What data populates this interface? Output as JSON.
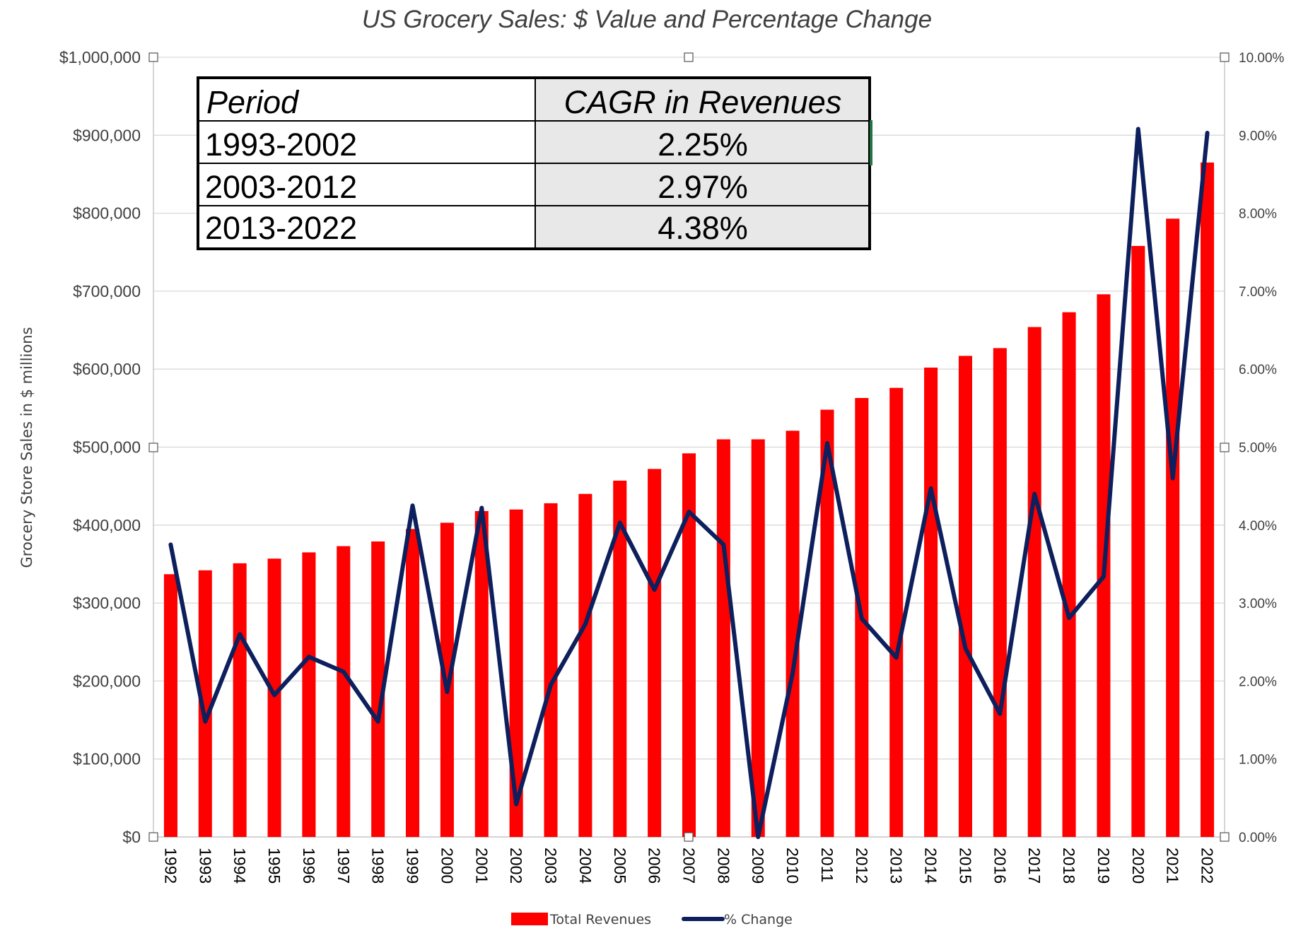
{
  "chart_data": {
    "type": "bar",
    "title": "US Grocery Sales: $ Value and Percentage Change",
    "ylabel": "Grocery Store Sales in $ millions",
    "xlabel": "",
    "ylim": [
      0,
      1000000
    ],
    "y2lim": [
      0,
      10
    ],
    "left_ticks": [
      "$0",
      "$100,000",
      "$200,000",
      "$300,000",
      "$400,000",
      "$500,000",
      "$600,000",
      "$700,000",
      "$800,000",
      "$900,000",
      "$1,000,000"
    ],
    "right_ticks": [
      "0.00%",
      "1.00%",
      "2.00%",
      "3.00%",
      "4.00%",
      "5.00%",
      "6.00%",
      "7.00%",
      "8.00%",
      "9.00%",
      "10.00%"
    ],
    "categories": [
      "1992",
      "1993",
      "1994",
      "1995",
      "1996",
      "1997",
      "1998",
      "1999",
      "2000",
      "2001",
      "2002",
      "2003",
      "2004",
      "2005",
      "2006",
      "2007",
      "2008",
      "2009",
      "2010",
      "2011",
      "2012",
      "2013",
      "2014",
      "2015",
      "2016",
      "2017",
      "2018",
      "2019",
      "2020",
      "2021",
      "2022"
    ],
    "series": [
      {
        "name": "Total Revenues",
        "type": "bar",
        "axis": "left",
        "color": "#ff0000",
        "values": [
          337000,
          342000,
          351000,
          357000,
          365000,
          373000,
          379000,
          395000,
          403000,
          418000,
          420000,
          428000,
          440000,
          457000,
          472000,
          492000,
          510000,
          510000,
          521000,
          548000,
          563000,
          576000,
          602000,
          617000,
          627000,
          654000,
          673000,
          696000,
          758000,
          793000,
          865000
        ]
      },
      {
        "name": "% Change",
        "type": "line",
        "axis": "right",
        "color": "#0d1f5c",
        "values": [
          3.75,
          1.48,
          2.6,
          1.82,
          2.31,
          2.12,
          1.48,
          4.25,
          1.86,
          4.22,
          0.42,
          1.95,
          2.73,
          4.03,
          3.17,
          4.17,
          3.75,
          0.0,
          2.1,
          5.05,
          2.8,
          2.3,
          4.47,
          2.42,
          1.58,
          4.4,
          2.81,
          3.34,
          9.08,
          4.6,
          9.03
        ]
      }
    ],
    "legend_position": "bottom",
    "grid": true
  },
  "cagr_table": {
    "header": {
      "period": "Period",
      "cagr": "CAGR in Revenues"
    },
    "rows": [
      {
        "period": "1993-2002",
        "cagr": "2.25%"
      },
      {
        "period": "2003-2012",
        "cagr": "2.97%"
      },
      {
        "period": "2013-2022",
        "cagr": "4.38%"
      }
    ]
  }
}
